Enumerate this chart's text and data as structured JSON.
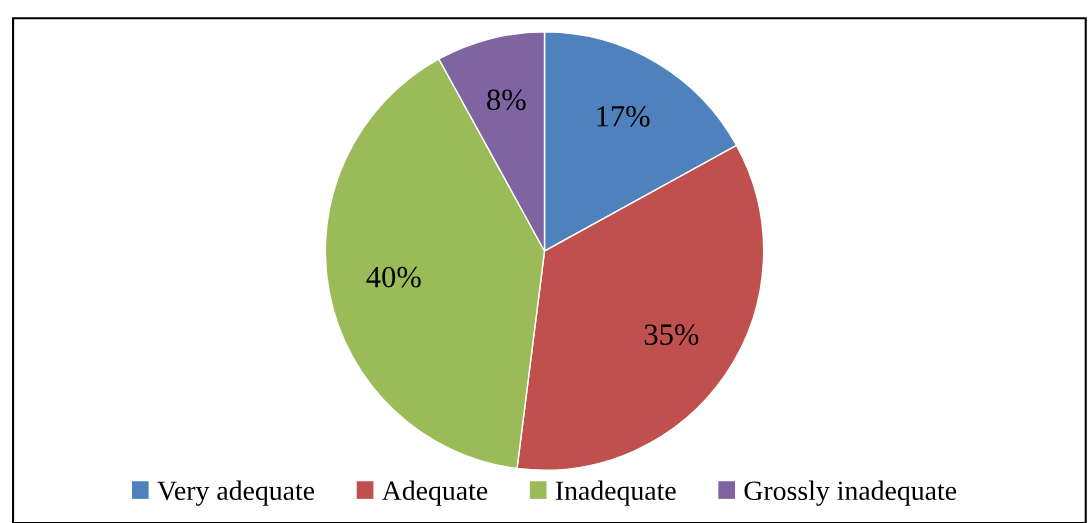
{
  "chart_data": {
    "type": "pie",
    "categories": [
      "Very adequate",
      "Adequate",
      "Inadequate",
      "Grossly inadequate"
    ],
    "values": [
      17,
      35,
      40,
      8
    ],
    "colors": [
      "#4f81bd",
      "#c0504d",
      "#9bbb59",
      "#8064a2"
    ],
    "value_labels": [
      "17%",
      "35%",
      "40%",
      "8%"
    ],
    "legend": "bottom"
  }
}
